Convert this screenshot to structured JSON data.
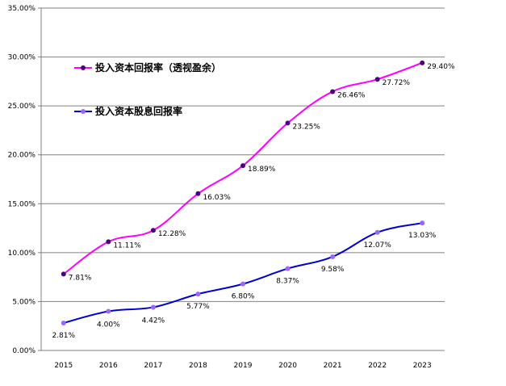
{
  "chart_data": {
    "type": "line",
    "categories": [
      "2015",
      "2016",
      "2017",
      "2018",
      "2019",
      "2020",
      "2021",
      "2022",
      "2023"
    ],
    "ylim": [
      0,
      35
    ],
    "ytick_step": 5,
    "ytick_labels": [
      "0.00%",
      "5.00%",
      "10.00%",
      "15.00%",
      "20.00%",
      "25.00%",
      "30.00%",
      "35.00%"
    ],
    "grid": "horizontal",
    "legend_placement": "upper-left",
    "series": [
      {
        "name": "投入资本回报率（透视盈余）",
        "line_color": "#ff00ff",
        "marker_color": "#4b0082",
        "values": [
          7.81,
          11.11,
          12.28,
          16.03,
          18.89,
          23.25,
          26.46,
          27.72,
          29.4
        ],
        "labels": [
          "7.81%",
          "11.11%",
          "12.28%",
          "16.03%",
          "18.89%",
          "23.25%",
          "26.46%",
          "27.72%",
          "29.40%"
        ]
      },
      {
        "name": "投入资本股息回报率",
        "line_color": "#0000cd",
        "marker_color": "#9966ff",
        "values": [
          2.81,
          4.0,
          4.42,
          5.77,
          6.8,
          8.37,
          9.58,
          12.07,
          13.03
        ],
        "labels": [
          "2.81%",
          "4.00%",
          "4.42%",
          "5.77%",
          "6.80%",
          "8.37%",
          "9.58%",
          "12.07%",
          "13.03%"
        ]
      }
    ]
  }
}
